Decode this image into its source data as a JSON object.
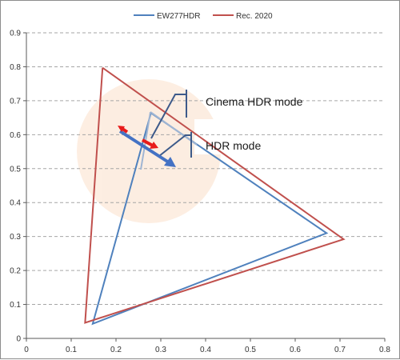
{
  "chart_data": {
    "type": "line",
    "title": "",
    "xlabel": "",
    "ylabel": "",
    "xlim": [
      0,
      0.8
    ],
    "ylim": [
      0,
      0.9
    ],
    "x_ticks": [
      "0",
      "0.1",
      "0.2",
      "0.3",
      "0.4",
      "0.5",
      "0.6",
      "0.7",
      "0.8"
    ],
    "y_ticks": [
      "0",
      "0.1",
      "0.2",
      "0.3",
      "0.4",
      "0.5",
      "0.6",
      "0.7",
      "0.8",
      "0.9"
    ],
    "grid": "horizontal dashed",
    "legend_position": "top",
    "series": [
      {
        "name": "EW277HDR",
        "color": "#4f81bd",
        "points": [
          [
            0.278,
            0.664
          ],
          [
            0.67,
            0.31
          ],
          [
            0.148,
            0.043
          ],
          [
            0.278,
            0.664
          ]
        ]
      },
      {
        "name": "Rec. 2020",
        "color": "#c0504d",
        "points": [
          [
            0.17,
            0.797
          ],
          [
            0.708,
            0.292
          ],
          [
            0.131,
            0.046
          ],
          [
            0.17,
            0.797
          ]
        ]
      }
    ],
    "annotations": [
      {
        "text": "Cinema HDR mode",
        "x": 0.395,
        "y": 0.7
      },
      {
        "text": "HDR mode",
        "x": 0.395,
        "y": 0.56
      }
    ]
  }
}
